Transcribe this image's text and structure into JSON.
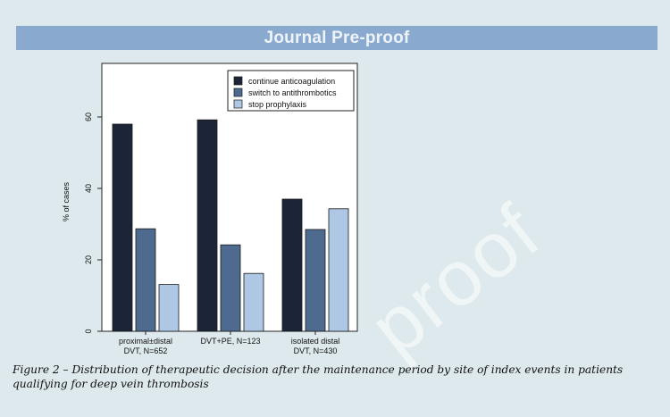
{
  "header": {
    "banner": "Journal Pre-proof"
  },
  "chart_data": {
    "type": "bar",
    "categories": [
      [
        "proximal±distal",
        "DVT, N=652"
      ],
      [
        "DVT+PE, N=123"
      ],
      [
        "isolated distal",
        "DVT, N=430"
      ]
    ],
    "series": [
      {
        "name": "continue  anticoagulation",
        "color": "#1c2538",
        "values": [
          58.0,
          59.2,
          37.0
        ]
      },
      {
        "name": "switch to antithrombotics",
        "color": "#4f6a8f",
        "values": [
          28.7,
          24.2,
          28.5
        ]
      },
      {
        "name": "stop prophylaxis",
        "color": "#adc7e4",
        "values": [
          13.1,
          16.2,
          34.3
        ]
      }
    ],
    "ylabel": "% of cases",
    "xlabel": "",
    "ylim": [
      0,
      75
    ],
    "yticks": [
      0,
      20,
      40,
      60
    ],
    "legend_position": "top-right",
    "grid": false
  },
  "caption": "Figure 2 – Distribution of therapeutic decision after the maintenance period by site of index events in patients qualifying for deep vein thrombosis",
  "watermark": "proof"
}
